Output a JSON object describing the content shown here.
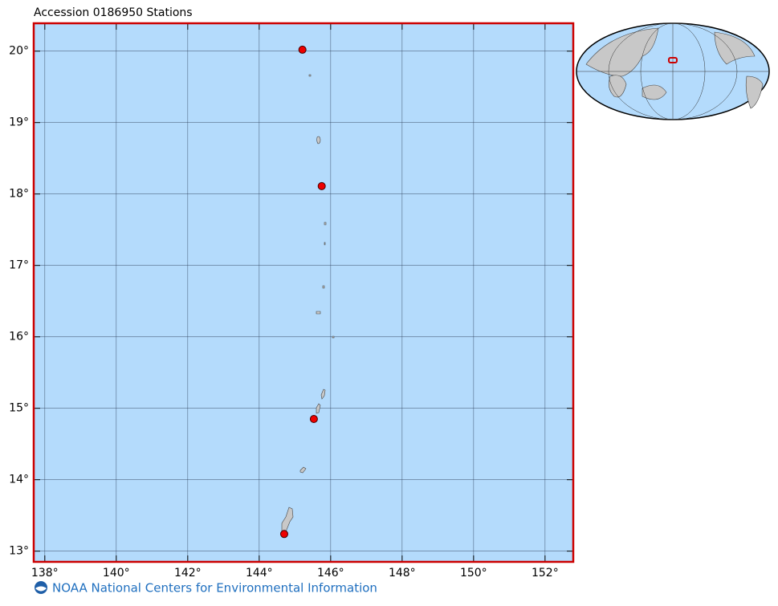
{
  "chart_data": {
    "type": "map",
    "title": "Accession 0186950 Stations",
    "xlim": [
      137.69,
      152.79
    ],
    "ylim": [
      12.85,
      20.39
    ],
    "xticks": [
      {
        "value": 138,
        "label": "138°"
      },
      {
        "value": 140,
        "label": "140°"
      },
      {
        "value": 142,
        "label": "142°"
      },
      {
        "value": 144,
        "label": "144°"
      },
      {
        "value": 146,
        "label": "146°"
      },
      {
        "value": 148,
        "label": "148°"
      },
      {
        "value": 150,
        "label": "150°"
      },
      {
        "value": 152,
        "label": "152°"
      }
    ],
    "yticks": [
      {
        "value": 13,
        "label": "13°"
      },
      {
        "value": 14,
        "label": "14°"
      },
      {
        "value": 15,
        "label": "15°"
      },
      {
        "value": 16,
        "label": "16°"
      },
      {
        "value": 17,
        "label": "17°"
      },
      {
        "value": 18,
        "label": "18°"
      },
      {
        "value": 19,
        "label": "19°"
      },
      {
        "value": 20,
        "label": "20°"
      }
    ],
    "grid": true,
    "background": "#b4dbfc",
    "frame_color": "#cc0000",
    "series": [
      {
        "color": "#ee0000",
        "x": [
          145.21,
          145.75,
          145.53,
          144.7
        ],
        "values": [
          20.02,
          18.11,
          14.85,
          13.24
        ]
      }
    ]
  },
  "footer": "NOAA National Centers for Environmental Information"
}
